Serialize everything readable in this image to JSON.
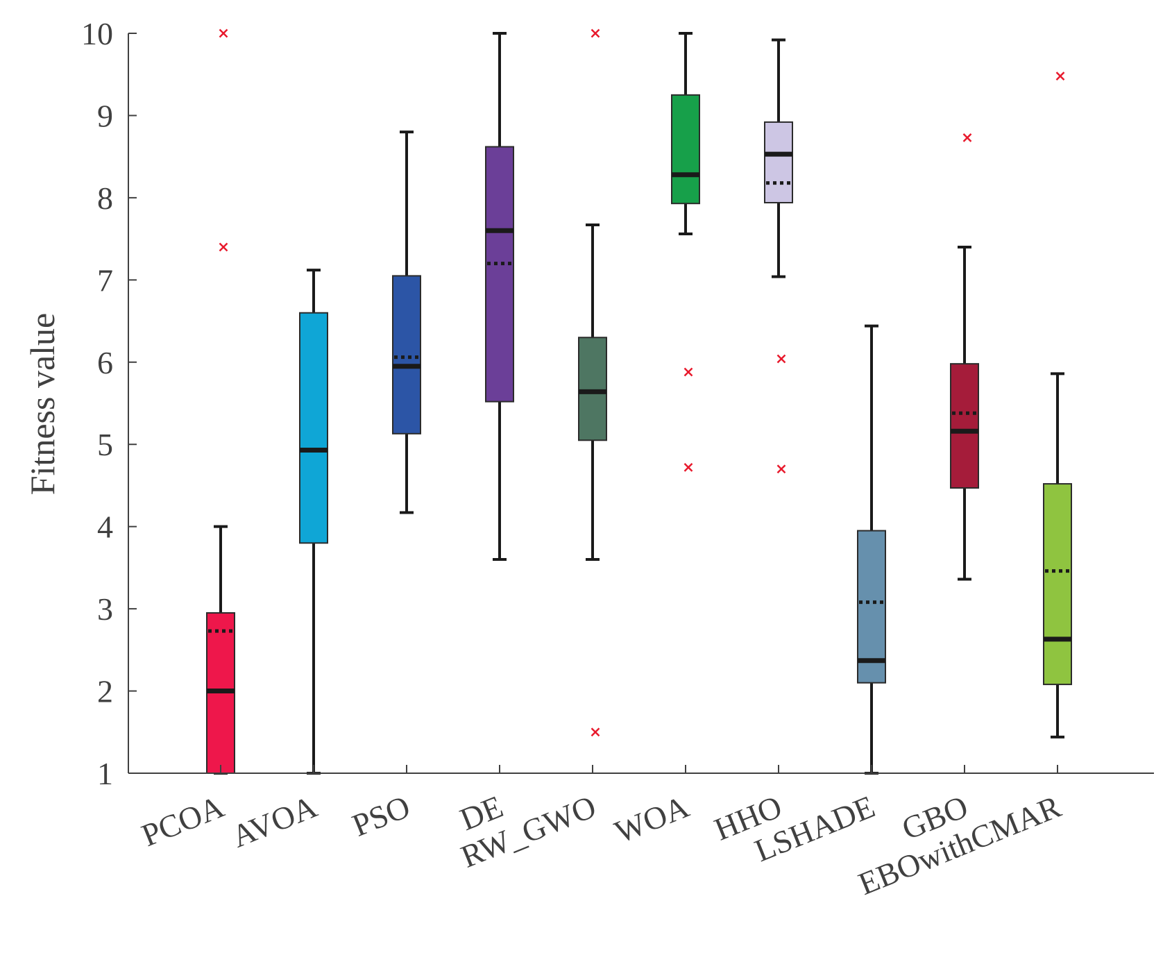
{
  "chart_data": {
    "type": "box",
    "title": "",
    "xlabel": "",
    "ylabel": "Fitness value",
    "ylim": [
      1,
      10
    ],
    "yticks": [
      "1",
      "2",
      "3",
      "4",
      "5",
      "6",
      "7",
      "8",
      "9",
      "10"
    ],
    "grid": false,
    "legend": "none",
    "colors": {
      "axis": "#404040",
      "whisker": "#1a1a1a",
      "outlier": "#e8192c"
    },
    "categories": [
      "PCOA",
      "AVOA",
      "PSO",
      "DE",
      "RW_GWO",
      "WOA",
      "HHO",
      "LSHADE",
      "GBO",
      "EBOwithCMAR"
    ],
    "boxes": [
      {
        "name": "PCOA",
        "color": "#ee174b",
        "whisker_low": 1.0,
        "q1": 1.0,
        "median": 2.0,
        "q3": 2.95,
        "whisker_high": 4.0,
        "mean": 2.73,
        "outliers": [
          10.0,
          7.4
        ]
      },
      {
        "name": "AVOA",
        "color": "#0fa6d6",
        "whisker_low": 1.0,
        "q1": 3.8,
        "median": 4.93,
        "q3": 6.6,
        "whisker_high": 7.12,
        "mean": null,
        "outliers": []
      },
      {
        "name": "PSO",
        "color": "#2c55a6",
        "whisker_low": 4.17,
        "q1": 5.13,
        "median": 5.95,
        "q3": 7.05,
        "whisker_high": 8.8,
        "mean": 6.06,
        "outliers": []
      },
      {
        "name": "DE",
        "color": "#6b3f98",
        "whisker_low": 3.6,
        "q1": 5.52,
        "median": 7.6,
        "q3": 8.62,
        "whisker_high": 10.0,
        "mean": 7.2,
        "outliers": []
      },
      {
        "name": "RW_GWO",
        "color": "#4e7662",
        "whisker_low": 3.6,
        "q1": 5.05,
        "median": 5.64,
        "q3": 6.3,
        "whisker_high": 7.67,
        "mean": null,
        "outliers": [
          10.0,
          1.5
        ]
      },
      {
        "name": "WOA",
        "color": "#17a04a",
        "whisker_low": 7.56,
        "q1": 7.93,
        "median": 8.28,
        "q3": 9.25,
        "whisker_high": 10.0,
        "mean": null,
        "outliers": [
          5.88,
          4.72
        ]
      },
      {
        "name": "HHO",
        "color": "#cdc6e4",
        "whisker_low": 7.04,
        "q1": 7.94,
        "median": 8.53,
        "q3": 8.92,
        "whisker_high": 9.92,
        "mean": 8.18,
        "outliers": [
          6.04,
          4.7
        ]
      },
      {
        "name": "LSHADE",
        "color": "#6690ad",
        "whisker_low": 1.0,
        "q1": 2.1,
        "median": 2.37,
        "q3": 3.95,
        "whisker_high": 6.44,
        "mean": 3.08,
        "outliers": []
      },
      {
        "name": "GBO",
        "color": "#a51c3a",
        "whisker_low": 3.36,
        "q1": 4.47,
        "median": 5.16,
        "q3": 5.98,
        "whisker_high": 7.4,
        "mean": 5.38,
        "outliers": [
          8.73
        ]
      },
      {
        "name": "EBOwithCMAR",
        "color": "#8fc440",
        "whisker_low": 1.44,
        "q1": 2.08,
        "median": 2.63,
        "q3": 4.52,
        "whisker_high": 5.86,
        "mean": 3.46,
        "outliers": [
          9.48
        ]
      }
    ]
  }
}
